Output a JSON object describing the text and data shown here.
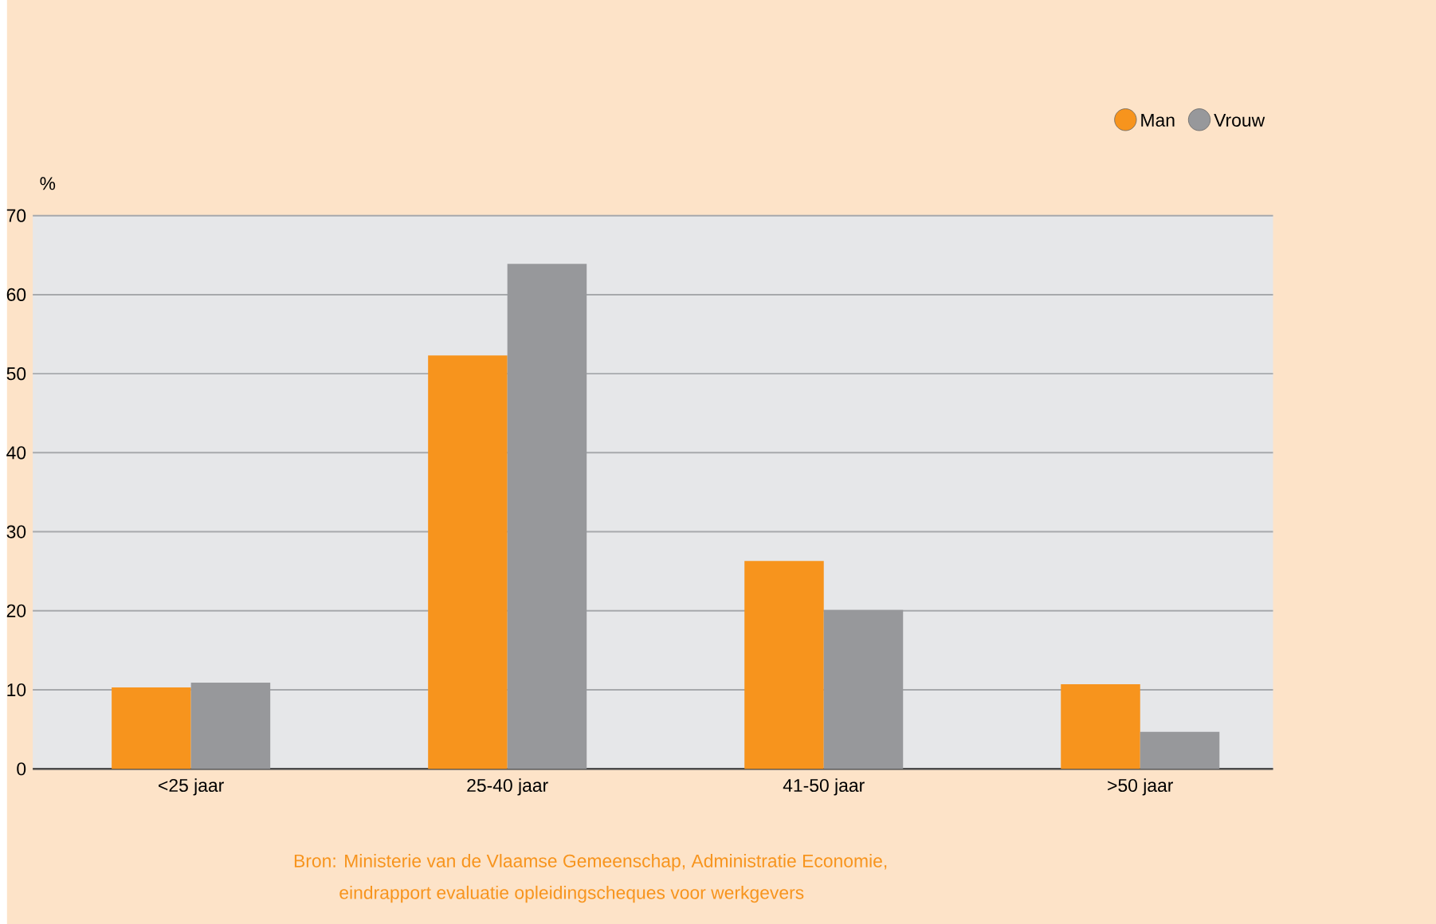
{
  "chart_data": {
    "type": "bar",
    "ylabel": "%",
    "categories": [
      "<25 jaar",
      "25-40 jaar",
      "41-50 jaar",
      ">50 jaar"
    ],
    "series": [
      {
        "name": "Man",
        "color": "#f7941d",
        "values": [
          10.3,
          52.3,
          26.3,
          10.7
        ]
      },
      {
        "name": "Vrouw",
        "color": "#97989b",
        "values": [
          10.9,
          63.9,
          20.1,
          4.7
        ]
      }
    ],
    "ylim": [
      0,
      70
    ],
    "yticks": [
      0,
      10,
      20,
      30,
      40,
      50,
      60,
      70
    ],
    "grid": "y",
    "legend": "top right",
    "annotations": [
      "Bron: Ministerie van de Vlaamse Gemeenschap, Administratie Economie,",
      "eindrapport evaluatie opleidingscheques voor werkgevers"
    ]
  }
}
